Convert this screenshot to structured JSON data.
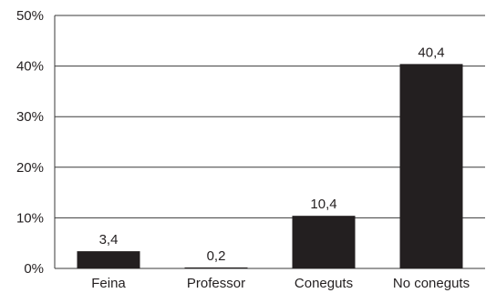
{
  "chart_data": {
    "type": "bar",
    "categories": [
      "Feina",
      "Professor",
      "Coneguts",
      "No coneguts"
    ],
    "values": [
      3.4,
      0.2,
      10.4,
      40.4
    ],
    "data_labels": [
      "3,4",
      "0,2",
      "10,4",
      "40,4"
    ],
    "yticks": [
      0,
      10,
      20,
      30,
      40,
      50
    ],
    "ytick_labels": [
      "0%",
      "10%",
      "20%",
      "30%",
      "40%",
      "50%"
    ],
    "ylim": [
      0,
      50
    ],
    "bar_color": "#231f20",
    "grid": true,
    "title": "",
    "xlabel": "",
    "ylabel": ""
  }
}
